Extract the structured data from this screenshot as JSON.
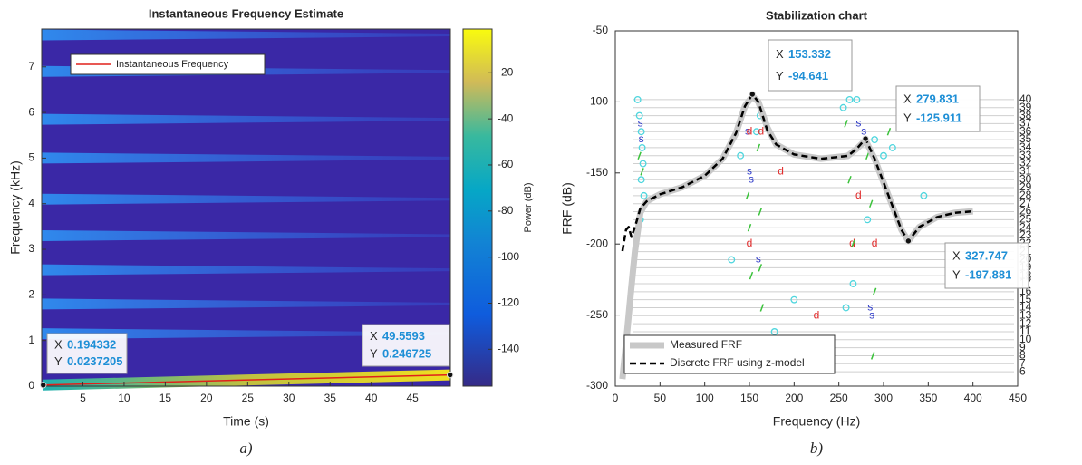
{
  "chart_data": [
    {
      "type": "heatmap",
      "title": "Instantaneous Frequency Estimate",
      "xlabel": "Time (s)",
      "ylabel": "Frequency (kHz)",
      "xlim": [
        0,
        49.6
      ],
      "ylim": [
        0,
        7.83
      ],
      "xticks": [
        5,
        10,
        15,
        20,
        25,
        30,
        35,
        40,
        45
      ],
      "yticks": [
        0,
        1,
        2,
        3,
        4,
        5,
        6,
        7
      ],
      "harmonics": [
        7.7,
        6.9,
        5.85,
        5.0,
        4.1,
        3.3,
        2.55,
        1.8,
        1.15
      ],
      "colorbar": {
        "label": "Power (dB)",
        "clim": [
          -156,
          -1
        ],
        "ticks": [
          -20,
          -40,
          -60,
          -80,
          -100,
          -120,
          -140
        ]
      },
      "series": [
        {
          "name": "Instantaneous Frequency",
          "color": "#e0201b",
          "x": [
            0.194332,
            49.5593
          ],
          "values": [
            0.0237205,
            0.246725
          ]
        }
      ],
      "legend": "upper left",
      "datatip_labels": [
        "X",
        "Y"
      ],
      "datatips": [
        {
          "x": 0.194332,
          "y": 0.0237205
        },
        {
          "x": 49.5593,
          "y": 0.246725
        }
      ],
      "caption": "a)"
    },
    {
      "type": "line",
      "title": "Stabilization chart",
      "xlabel": "Frequency (Hz)",
      "ylabel": "FRF (dB)",
      "xlim": [
        0,
        450
      ],
      "ylim": [
        -300,
        -50
      ],
      "xticks": [
        0,
        50,
        100,
        150,
        200,
        250,
        300,
        350,
        400,
        450
      ],
      "yticks": [
        -300,
        -250,
        -200,
        -150,
        -100,
        -50
      ],
      "y2lim": [
        4.2,
        48.6
      ],
      "y2ticks": [
        6,
        7,
        8,
        9,
        10,
        11,
        12,
        13,
        14,
        15,
        16,
        17,
        18,
        19,
        20,
        21,
        22,
        23,
        24,
        25,
        26,
        27,
        28,
        29,
        30,
        31,
        32,
        33,
        34,
        35,
        36,
        37,
        38,
        39,
        40
      ],
      "x": [
        8,
        12,
        15,
        18,
        22,
        28,
        35,
        50,
        75,
        100,
        120,
        135,
        145,
        153.332,
        160,
        170,
        180,
        200,
        230,
        260,
        270,
        279.831,
        290,
        305,
        320,
        327.747,
        340,
        360,
        380,
        400
      ],
      "series": [
        {
          "name": "Measured FRF",
          "color": "#c8c8c8",
          "style": "solid",
          "width": 7,
          "values": [
            -295,
            -270,
            -250,
            -230,
            -205,
            -178,
            -170,
            -165,
            -160,
            -152,
            -140,
            -122,
            -103,
            -96,
            -100,
            -118,
            -130,
            -137,
            -140,
            -138,
            -133,
            -127,
            -140,
            -165,
            -190,
            -198,
            -188,
            -181,
            -178,
            -177
          ]
        },
        {
          "name": "Discrete FRF using z-model",
          "color": "#000000",
          "style": "dashed",
          "width": 2.5,
          "values": [
            -205,
            -190,
            -188,
            -195,
            -188,
            -175,
            -170,
            -165,
            -160,
            -152,
            -140,
            -122,
            -103,
            -94.641,
            -100,
            -120,
            -130,
            -137,
            -140,
            -138,
            -133,
            -125.911,
            -140,
            -165,
            -190,
            -197.881,
            -188,
            -181,
            -178,
            -177
          ]
        }
      ],
      "poles": [
        {
          "marker": "circle",
          "color": "#4fd6de",
          "x": [
            25,
            27,
            29,
            30,
            31,
            29,
            32,
            28,
            140,
            133,
            158,
            162,
            200,
            130,
            178,
            255,
            262,
            270,
            266,
            258,
            290,
            300,
            310,
            345,
            282
          ],
          "order": [
            40,
            38,
            36,
            34,
            32,
            30,
            28,
            25,
            33,
            10,
            36,
            38,
            15,
            20,
            11,
            39,
            40,
            40,
            17,
            14,
            35,
            33,
            34,
            28,
            25
          ]
        },
        {
          "marker": "text",
          "label": "s",
          "color": "#2a36c7",
          "x": [
            28,
            29,
            148,
            150,
            152,
            160,
            272,
            278,
            285,
            287
          ],
          "order": [
            37,
            35,
            36,
            31,
            30,
            20,
            37,
            36,
            14,
            13
          ]
        },
        {
          "marker": "text",
          "label": "d",
          "color": "#e02a2a",
          "x": [
            150,
            163,
            185,
            272,
            150,
            265,
            290,
            225
          ],
          "order": [
            36,
            36,
            31,
            28,
            22,
            22,
            22,
            13
          ]
        },
        {
          "marker": "tick",
          "color": "#3ac23a",
          "x": [
            27,
            30,
            148,
            150,
            152,
            160,
            162,
            164,
            258,
            262,
            266,
            282,
            286,
            290,
            306,
            150,
            162,
            288
          ],
          "order": [
            33,
            31,
            28,
            24,
            18,
            34,
            26,
            14,
            37,
            30,
            22,
            33,
            27,
            16,
            36,
            10,
            19,
            8
          ]
        }
      ],
      "legend": "lower left",
      "datatip_labels": [
        "X",
        "Y"
      ],
      "datatips": [
        {
          "x": 153.332,
          "y": -94.641
        },
        {
          "x": 279.831,
          "y": -125.911
        },
        {
          "x": 327.747,
          "y": -197.881
        }
      ],
      "caption": "b)"
    }
  ]
}
